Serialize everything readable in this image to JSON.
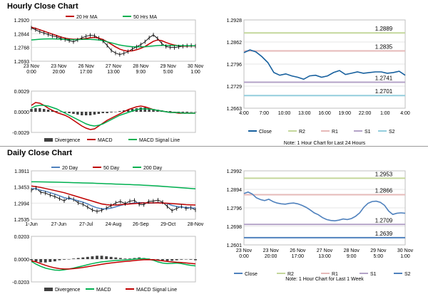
{
  "page": {
    "hourly_title": "Hourly Close Chart",
    "daily_title": "Daily Close Chart"
  },
  "chart_data": [
    {
      "id": "hourly_price",
      "type": "line",
      "legend": [
        "20 Hr MA",
        "50 Hrs MA"
      ],
      "ylim": [
        1.2693,
        1.292
      ],
      "yticks": [
        "1.2920",
        "1.2844",
        "1.2768",
        "1.2693"
      ],
      "xticks": [
        "23 Nov\n0:00",
        "23 Nov\n20:00",
        "26 Nov\n17:00",
        "27 Nov\n13:00",
        "28 Nov\n9:00",
        "29 Nov\n5:00",
        "30 Nov\n1:00"
      ],
      "colors": {
        "close": "#000000",
        "ma20": "#c00000",
        "ma50": "#00b050"
      },
      "series": [
        {
          "key": "close",
          "values": [
            1.2876,
            1.2866,
            1.2855,
            1.2848,
            1.284,
            1.2832,
            1.2826,
            1.2818,
            1.2812,
            1.2806,
            1.28,
            1.281,
            1.2822,
            1.283,
            1.2836,
            1.2833,
            1.282,
            1.2804,
            1.278,
            1.2752,
            1.2738,
            1.273,
            1.2736,
            1.2746,
            1.276,
            1.2772,
            1.2784,
            1.28,
            1.2822,
            1.2838,
            1.2818,
            1.279,
            1.2774,
            1.277,
            1.2768,
            1.2772,
            1.2775,
            1.2778,
            1.278,
            1.2776
          ]
        },
        {
          "key": "ma20",
          "values": [
            1.288,
            1.2874,
            1.2866,
            1.2858,
            1.285,
            1.2842,
            1.2834,
            1.2826,
            1.282,
            1.2816,
            1.2814,
            1.2814,
            1.2816,
            1.2818,
            1.2822,
            1.2824,
            1.282,
            1.2812,
            1.28,
            1.2786,
            1.2772,
            1.276,
            1.2752,
            1.2748,
            1.275,
            1.2756,
            1.2764,
            1.2774,
            1.2788,
            1.2802,
            1.281,
            1.2806,
            1.2796,
            1.2788,
            1.2782,
            1.2778,
            1.2776,
            1.2776,
            1.2777,
            1.2777
          ]
        },
        {
          "key": "ma50",
          "values": [
            1.281,
            1.2812,
            1.2814,
            1.2815,
            1.2816,
            1.2816,
            1.2815,
            1.2814,
            1.2813,
            1.2812,
            1.2812,
            1.2812,
            1.2813,
            1.2813,
            1.2813,
            1.2812,
            1.281,
            1.2806,
            1.28,
            1.2794,
            1.2788,
            1.2782,
            1.2778,
            1.2775,
            1.2773,
            1.2772,
            1.2772,
            1.2773,
            1.2775,
            1.2777,
            1.2779,
            1.278,
            1.278,
            1.278,
            1.2779,
            1.2779,
            1.2778,
            1.2778,
            1.2778,
            1.2778
          ]
        }
      ]
    },
    {
      "id": "hourly_macd",
      "type": "bar+line",
      "legend": [
        "Divergence",
        "MACD",
        "MACD Signal Line"
      ],
      "ylim": [
        -0.0029,
        0.0029
      ],
      "yticks": [
        "0.0029",
        "0.0000",
        "-0.0029"
      ],
      "colors": {
        "divergence": "#404040",
        "macd": "#c00000",
        "signal": "#00b050"
      },
      "series": [
        {
          "key": "divergence",
          "values": [
            0.0004,
            0.0005,
            0.0005,
            0.0004,
            0.0003,
            0.0002,
            0.0001,
            0.0,
            -0.0001,
            -0.0002,
            -0.0003,
            -0.0004,
            -0.0005,
            -0.0005,
            -0.0005,
            -0.0004,
            -0.0003,
            -0.0002,
            -0.0002,
            -0.0001,
            0.0,
            0.0001,
            0.0002,
            0.0003,
            0.0004,
            0.0005,
            0.0006,
            0.0006,
            0.0005,
            0.0004,
            0.0003,
            0.0002,
            0.0001,
            0.0001,
            0.0,
            0.0,
            -0.0001,
            -0.0001,
            0.0,
            0.0
          ]
        },
        {
          "key": "macd",
          "values": [
            0.0009,
            0.0013,
            0.0012,
            0.0009,
            0.0005,
            0.0002,
            -0.0001,
            -0.0003,
            -0.0005,
            -0.0008,
            -0.0012,
            -0.0016,
            -0.002,
            -0.0023,
            -0.0025,
            -0.0024,
            -0.002,
            -0.0016,
            -0.0012,
            -0.0009,
            -0.0006,
            -0.0003,
            0.0,
            0.0003,
            0.0005,
            0.0007,
            0.0008,
            0.0007,
            0.0005,
            0.0003,
            0.0002,
            0.0001,
            0.0,
            -0.0001,
            -0.0001,
            -0.0002,
            -0.0002,
            -0.0002,
            -0.0002,
            -0.0002
          ]
        },
        {
          "key": "signal",
          "values": [
            0.0005,
            0.0008,
            0.0009,
            0.0009,
            0.0008,
            0.0006,
            0.0004,
            0.0001,
            -0.0002,
            -0.0005,
            -0.0008,
            -0.0011,
            -0.0014,
            -0.0017,
            -0.0019,
            -0.002,
            -0.0019,
            -0.0017,
            -0.0014,
            -0.0011,
            -0.0008,
            -0.0005,
            -0.0003,
            -0.0001,
            0.0001,
            0.0003,
            0.0004,
            0.0004,
            0.0004,
            0.0003,
            0.0002,
            0.0001,
            0.0,
            -0.0001,
            -0.0001,
            -0.0001,
            -0.0002,
            -0.0002,
            -0.0002,
            -0.0002
          ]
        }
      ]
    },
    {
      "id": "hourly_levels",
      "type": "line",
      "ylim": [
        1.2663,
        1.2928
      ],
      "yticks": [
        "1.2928",
        "1.2862",
        "1.2796",
        "1.2729",
        "1.2663"
      ],
      "xticks": [
        "4:00",
        "7:00",
        "10:00",
        "13:00",
        "16:00",
        "19:00",
        "22:00",
        "1:00",
        "4:00"
      ],
      "legend": [
        "Close",
        "R2",
        "R1",
        "S1",
        "S2"
      ],
      "colors": {
        "close": "#17609e",
        "R2": "#c4d79b",
        "R1": "#e6b9b8",
        "S1": "#b3a2c7",
        "S2": "#93cddd"
      },
      "levels": {
        "R2": 1.2889,
        "R1": 1.2835,
        "S1": 1.2741,
        "S2": 1.2701
      },
      "level_labels": {
        "R2": "1.2889",
        "R1": "1.2835",
        "S1": "1.2741",
        "S2": "1.2701"
      },
      "close": [
        1.283,
        1.2838,
        1.2832,
        1.2818,
        1.28,
        1.277,
        1.2762,
        1.2766,
        1.276,
        1.2756,
        1.275,
        1.276,
        1.2762,
        1.2756,
        1.276,
        1.277,
        1.2776,
        1.2764,
        1.2768,
        1.2772,
        1.2768,
        1.277,
        1.2772,
        1.2772,
        1.2768,
        1.277,
        1.2774,
        1.2762
      ],
      "note": "Note: 1 Hour Chart for Last 24 Hours"
    },
    {
      "id": "daily_price",
      "type": "line",
      "legend": [
        "20 Day",
        "50 Day",
        "200 Day"
      ],
      "ylim": [
        1.2535,
        1.3911
      ],
      "yticks": [
        "1.3911",
        "1.3453",
        "1.2994",
        "1.2535"
      ],
      "xticks": [
        "1-Jun",
        "27-Jun",
        "27-Jul",
        "24-Aug",
        "26-Sep",
        "29-Oct",
        "28-Nov"
      ],
      "colors": {
        "close": "#000000",
        "ma20": "#4f81bd",
        "ma50": "#c00000",
        "ma200": "#00b050"
      },
      "series": [
        {
          "key": "close",
          "values": [
            1.336,
            1.342,
            1.33,
            1.328,
            1.322,
            1.318,
            1.312,
            1.306,
            1.315,
            1.31,
            1.3,
            1.296,
            1.288,
            1.28,
            1.276,
            1.279,
            1.285,
            1.292,
            1.3,
            1.304,
            1.298,
            1.305,
            1.307,
            1.296,
            1.295,
            1.304,
            1.305,
            1.308,
            1.302,
            1.29,
            1.278,
            1.284,
            1.29,
            1.284,
            1.286,
            1.28
          ]
        },
        {
          "key": "ma20",
          "values": [
            1.341,
            1.34,
            1.336,
            1.333,
            1.329,
            1.325,
            1.32,
            1.315,
            1.312,
            1.31,
            1.306,
            1.302,
            1.297,
            1.291,
            1.286,
            1.283,
            1.283,
            1.285,
            1.289,
            1.293,
            1.296,
            1.298,
            1.3,
            1.301,
            1.3,
            1.299,
            1.3,
            1.301,
            1.3,
            1.298,
            1.293,
            1.29,
            1.288,
            1.287,
            1.286,
            1.285
          ]
        },
        {
          "key": "ma50",
          "values": [
            1.348,
            1.346,
            1.344,
            1.341,
            1.338,
            1.335,
            1.332,
            1.329,
            1.325,
            1.321,
            1.317,
            1.313,
            1.309,
            1.305,
            1.301,
            1.297,
            1.295,
            1.294,
            1.294,
            1.295,
            1.296,
            1.297,
            1.298,
            1.299,
            1.3,
            1.3,
            1.3,
            1.3,
            1.2995,
            1.299,
            1.298,
            1.297,
            1.296,
            1.295,
            1.2945,
            1.294
          ]
        },
        {
          "key": "ma200",
          "values": [
            1.36,
            1.36,
            1.3598,
            1.3595,
            1.3592,
            1.359,
            1.3587,
            1.3584,
            1.358,
            1.3576,
            1.3572,
            1.3568,
            1.3564,
            1.356,
            1.3555,
            1.355,
            1.3545,
            1.354,
            1.3535,
            1.353,
            1.3525,
            1.352,
            1.3515,
            1.351,
            1.3503,
            1.3496,
            1.3488,
            1.348,
            1.347,
            1.346,
            1.345,
            1.344,
            1.343,
            1.342,
            1.341,
            1.34
          ]
        }
      ]
    },
    {
      "id": "daily_macd",
      "type": "bar+line",
      "legend": [
        "Divergence",
        "MACD",
        "MACD Signal Line"
      ],
      "ylim": [
        -0.0203,
        0.0203
      ],
      "yticks": [
        "0.0203",
        "0.0000",
        "-0.0203"
      ],
      "colors": {
        "divergence": "#404040",
        "macd": "#00b050",
        "signal": "#c00000"
      },
      "series": [
        {
          "key": "divergence",
          "values": [
            -0.001,
            -0.002,
            -0.003,
            -0.003,
            -0.0025,
            -0.002,
            -0.001,
            -0.0005,
            0.0,
            0.0005,
            0.001,
            0.0015,
            0.002,
            0.0025,
            0.003,
            0.003,
            0.0025,
            0.002,
            0.0015,
            0.001,
            0.0005,
            0.0005,
            0.001,
            0.0015,
            0.001,
            0.0005,
            0.0,
            -0.0005,
            -0.001,
            -0.0015,
            -0.0015,
            -0.001,
            -0.0005,
            0.0,
            -0.0005,
            -0.001
          ]
        },
        {
          "key": "macd",
          "values": [
            -0.002,
            -0.0045,
            -0.0065,
            -0.008,
            -0.009,
            -0.0098,
            -0.01,
            -0.0095,
            -0.0088,
            -0.008,
            -0.007,
            -0.006,
            -0.005,
            -0.004,
            -0.0032,
            -0.0025,
            -0.002,
            -0.0016,
            -0.0012,
            -0.001,
            -0.0008,
            -0.0005,
            0.0,
            0.0003,
            0.0004,
            0.0,
            -0.001,
            -0.0025,
            -0.0035,
            -0.004,
            -0.0038,
            -0.0035,
            -0.004,
            -0.0048,
            -0.0055,
            -0.006
          ]
        },
        {
          "key": "signal",
          "values": [
            -0.0015,
            -0.0025,
            -0.004,
            -0.0055,
            -0.0068,
            -0.0078,
            -0.0085,
            -0.0088,
            -0.0088,
            -0.0085,
            -0.008,
            -0.0074,
            -0.0067,
            -0.006,
            -0.0053,
            -0.0046,
            -0.004,
            -0.0034,
            -0.0029,
            -0.0025,
            -0.0021,
            -0.0017,
            -0.0013,
            -0.0009,
            -0.0006,
            -0.0005,
            -0.0006,
            -0.001,
            -0.0015,
            -0.002,
            -0.0025,
            -0.0028,
            -0.003,
            -0.0034,
            -0.0038,
            -0.0042
          ]
        }
      ]
    },
    {
      "id": "daily_levels",
      "type": "line",
      "ylim": [
        1.2601,
        1.2992
      ],
      "yticks": [
        "1.2992",
        "1.2894",
        "1.2796",
        "1.2698",
        "1.2601"
      ],
      "xticks": [
        "23 Nov\n0:00",
        "23 Nov\n20:00",
        "26 Nov\n17:00",
        "27 Nov\n13:00",
        "28 Nov\n9:00",
        "29 Nov\n5:00",
        "30 Nov\n1:00"
      ],
      "legend": [
        "Close",
        "R2",
        "R1",
        "S1",
        "S2"
      ],
      "colors": {
        "close": "#4f81bd",
        "R2": "#c4d79b",
        "R1": "#e6b9b8",
        "S1": "#b3a2c7",
        "S2": "#4f81bd"
      },
      "levels": {
        "R2": 1.2953,
        "R1": 1.2866,
        "S1": 1.2709,
        "S2": 1.2639
      },
      "level_labels": {
        "R2": "1.2953",
        "R1": "1.2866",
        "S1": "1.2709",
        "S2": "1.2639"
      },
      "close": [
        1.2872,
        1.288,
        1.287,
        1.285,
        1.284,
        1.2835,
        1.2842,
        1.283,
        1.2822,
        1.2818,
        1.2816,
        1.282,
        1.2822,
        1.2818,
        1.281,
        1.28,
        1.2786,
        1.277,
        1.276,
        1.2745,
        1.2735,
        1.273,
        1.2728,
        1.2732,
        1.2738,
        1.2735,
        1.274,
        1.2752,
        1.277,
        1.28,
        1.282,
        1.283,
        1.2832,
        1.2826,
        1.281,
        1.278,
        1.2762,
        1.2768,
        1.277,
        1.2768
      ],
      "note": "Note: 1 Hour Chart for Last 1 Week"
    }
  ]
}
